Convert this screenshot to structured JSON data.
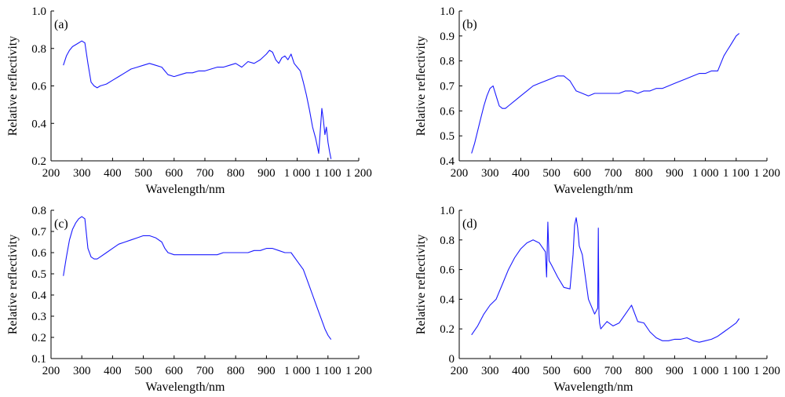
{
  "colors": {
    "line": "#1a1aff",
    "axis": "#000000"
  },
  "chart_data": [
    {
      "type": "line",
      "panel_label": "(a)",
      "xlabel": "Wavelength/nm",
      "ylabel": "Relative reflectivity",
      "xlim": [
        200,
        1200
      ],
      "ylim": [
        0.2,
        1.0
      ],
      "xticks": [
        "200",
        "300",
        "400",
        "500",
        "600",
        "700",
        "800",
        "900",
        "1 000",
        "1 100",
        "1 200"
      ],
      "yticks": [
        "0.2",
        "0.4",
        "0.6",
        "0.8",
        "1.0"
      ],
      "series": [
        {
          "x": [
            240,
            250,
            260,
            270,
            280,
            290,
            300,
            310,
            320,
            330,
            340,
            350,
            360,
            380,
            400,
            420,
            440,
            460,
            480,
            500,
            520,
            540,
            560,
            570,
            580,
            600,
            620,
            640,
            660,
            680,
            700,
            720,
            740,
            760,
            780,
            800,
            820,
            840,
            860,
            880,
            900,
            910,
            920,
            930,
            940,
            950,
            960,
            970,
            980,
            990,
            1000,
            1010,
            1020,
            1030,
            1040,
            1050,
            1060,
            1065,
            1070,
            1075,
            1080,
            1085,
            1090,
            1095,
            1100,
            1105,
            1110
          ],
          "y": [
            0.71,
            0.76,
            0.79,
            0.81,
            0.82,
            0.83,
            0.84,
            0.83,
            0.72,
            0.62,
            0.6,
            0.59,
            0.6,
            0.61,
            0.63,
            0.65,
            0.67,
            0.69,
            0.7,
            0.71,
            0.72,
            0.71,
            0.7,
            0.68,
            0.66,
            0.65,
            0.66,
            0.67,
            0.67,
            0.68,
            0.68,
            0.69,
            0.7,
            0.7,
            0.71,
            0.72,
            0.7,
            0.73,
            0.72,
            0.74,
            0.77,
            0.79,
            0.78,
            0.74,
            0.72,
            0.75,
            0.76,
            0.74,
            0.77,
            0.72,
            0.7,
            0.68,
            0.62,
            0.55,
            0.47,
            0.38,
            0.32,
            0.28,
            0.24,
            0.36,
            0.48,
            0.42,
            0.34,
            0.38,
            0.3,
            0.25,
            0.21
          ]
        }
      ]
    },
    {
      "type": "line",
      "panel_label": "(b)",
      "xlabel": "Wavelength/nm",
      "ylabel": "Relative reflectivity",
      "xlim": [
        200,
        1200
      ],
      "ylim": [
        0.4,
        1.0
      ],
      "xticks": [
        "200",
        "300",
        "400",
        "500",
        "600",
        "700",
        "800",
        "900",
        "1 000",
        "1 100",
        "1 200"
      ],
      "yticks": [
        "0.4",
        "0.5",
        "0.6",
        "0.7",
        "0.8",
        "0.9",
        "1.0"
      ],
      "series": [
        {
          "x": [
            240,
            250,
            260,
            270,
            280,
            290,
            300,
            310,
            320,
            330,
            340,
            350,
            360,
            380,
            400,
            420,
            440,
            460,
            480,
            500,
            520,
            540,
            550,
            560,
            570,
            580,
            600,
            620,
            640,
            660,
            680,
            700,
            720,
            740,
            760,
            780,
            800,
            820,
            840,
            860,
            880,
            900,
            920,
            940,
            960,
            980,
            1000,
            1020,
            1040,
            1050,
            1060,
            1070,
            1080,
            1090,
            1100,
            1110
          ],
          "y": [
            0.43,
            0.47,
            0.52,
            0.57,
            0.62,
            0.66,
            0.69,
            0.7,
            0.66,
            0.62,
            0.61,
            0.61,
            0.62,
            0.64,
            0.66,
            0.68,
            0.7,
            0.71,
            0.72,
            0.73,
            0.74,
            0.74,
            0.73,
            0.72,
            0.7,
            0.68,
            0.67,
            0.66,
            0.67,
            0.67,
            0.67,
            0.67,
            0.67,
            0.68,
            0.68,
            0.67,
            0.68,
            0.68,
            0.69,
            0.69,
            0.7,
            0.71,
            0.72,
            0.73,
            0.74,
            0.75,
            0.75,
            0.76,
            0.76,
            0.79,
            0.82,
            0.84,
            0.86,
            0.88,
            0.9,
            0.91
          ]
        }
      ]
    },
    {
      "type": "line",
      "panel_label": "(c)",
      "xlabel": "Wavelength/nm",
      "ylabel": "Relative reflectivity",
      "xlim": [
        200,
        1200
      ],
      "ylim": [
        0.1,
        0.8
      ],
      "xticks": [
        "200",
        "300",
        "400",
        "500",
        "600",
        "700",
        "800",
        "900",
        "1 000",
        "1 100",
        "1 200"
      ],
      "yticks": [
        "0.1",
        "0.2",
        "0.3",
        "0.4",
        "0.5",
        "0.6",
        "0.7",
        "0.8"
      ],
      "series": [
        {
          "x": [
            240,
            250,
            260,
            270,
            280,
            290,
            300,
            310,
            320,
            330,
            340,
            350,
            360,
            380,
            400,
            420,
            440,
            460,
            480,
            500,
            520,
            540,
            560,
            570,
            580,
            600,
            620,
            640,
            660,
            680,
            700,
            720,
            740,
            760,
            780,
            800,
            820,
            840,
            860,
            880,
            900,
            920,
            940,
            960,
            980,
            1000,
            1010,
            1020,
            1030,
            1040,
            1050,
            1060,
            1070,
            1080,
            1090,
            1100,
            1110
          ],
          "y": [
            0.49,
            0.58,
            0.66,
            0.71,
            0.74,
            0.76,
            0.77,
            0.76,
            0.62,
            0.58,
            0.57,
            0.57,
            0.58,
            0.6,
            0.62,
            0.64,
            0.65,
            0.66,
            0.67,
            0.68,
            0.68,
            0.67,
            0.65,
            0.62,
            0.6,
            0.59,
            0.59,
            0.59,
            0.59,
            0.59,
            0.59,
            0.59,
            0.59,
            0.6,
            0.6,
            0.6,
            0.6,
            0.6,
            0.61,
            0.61,
            0.62,
            0.62,
            0.61,
            0.6,
            0.6,
            0.56,
            0.54,
            0.52,
            0.48,
            0.44,
            0.4,
            0.36,
            0.32,
            0.28,
            0.24,
            0.21,
            0.19
          ]
        }
      ]
    },
    {
      "type": "line",
      "panel_label": "(d)",
      "xlabel": "Wavelength/nm",
      "ylabel": "Relative reflectivity",
      "xlim": [
        200,
        1200
      ],
      "ylim": [
        0,
        1.0
      ],
      "xticks": [
        "200",
        "300",
        "400",
        "500",
        "600",
        "700",
        "800",
        "900",
        "1 000",
        "1 100",
        "1 200"
      ],
      "yticks": [
        "0",
        "0.2",
        "0.4",
        "0.6",
        "0.8",
        "1.0"
      ],
      "series": [
        {
          "x": [
            240,
            260,
            280,
            300,
            320,
            340,
            360,
            380,
            400,
            420,
            440,
            460,
            480,
            484,
            488,
            492,
            500,
            520,
            540,
            560,
            570,
            575,
            580,
            585,
            590,
            600,
            610,
            620,
            640,
            650,
            652,
            654,
            656,
            660,
            680,
            700,
            720,
            740,
            760,
            780,
            800,
            820,
            840,
            860,
            880,
            900,
            920,
            940,
            960,
            980,
            1000,
            1020,
            1040,
            1060,
            1080,
            1100,
            1110
          ],
          "y": [
            0.16,
            0.22,
            0.3,
            0.36,
            0.4,
            0.5,
            0.6,
            0.68,
            0.74,
            0.78,
            0.8,
            0.78,
            0.72,
            0.55,
            0.92,
            0.66,
            0.63,
            0.55,
            0.48,
            0.47,
            0.7,
            0.9,
            0.95,
            0.88,
            0.76,
            0.7,
            0.55,
            0.4,
            0.3,
            0.34,
            0.88,
            0.3,
            0.24,
            0.2,
            0.25,
            0.22,
            0.24,
            0.3,
            0.36,
            0.25,
            0.24,
            0.18,
            0.14,
            0.12,
            0.12,
            0.13,
            0.13,
            0.14,
            0.12,
            0.11,
            0.12,
            0.13,
            0.15,
            0.18,
            0.21,
            0.24,
            0.27
          ]
        }
      ]
    }
  ]
}
